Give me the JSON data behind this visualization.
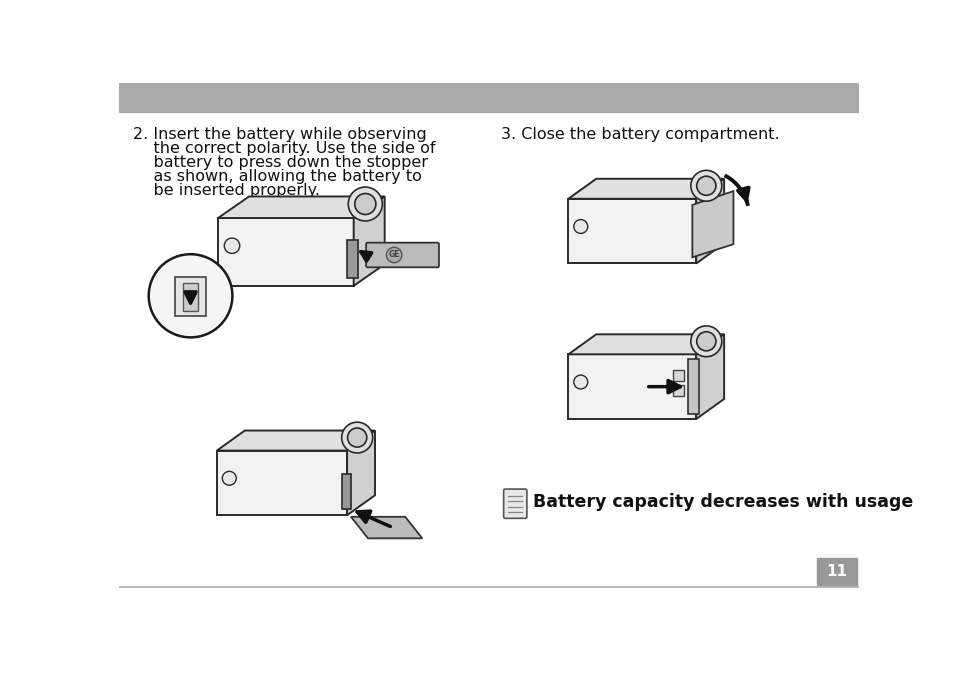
{
  "bg_color": "#ffffff",
  "header_color": "#aaaaaa",
  "footer_line_color": "#aaaaaa",
  "page_num_bg": "#999999",
  "page_num_text": "11",
  "page_num_text_color": "#ffffff",
  "step2_lines": [
    "2. Insert the battery while observing",
    "    the correct polarity. Use the side of",
    "    battery to press down the stopper",
    "    as shown, allowing the battery to",
    "    be inserted properly."
  ],
  "step3_text": "3. Close the battery compartment.",
  "note_text": "Battery capacity decreases with usage",
  "camera_edge": "#2a2a2a",
  "camera_face": "#f2f2f2",
  "camera_top": "#e0e0e0",
  "camera_side": "#d0d0d0",
  "battery_color": "#bbbbbb",
  "arrow_color": "#111111",
  "font_size_main": 11.5,
  "font_size_note": 12.5
}
